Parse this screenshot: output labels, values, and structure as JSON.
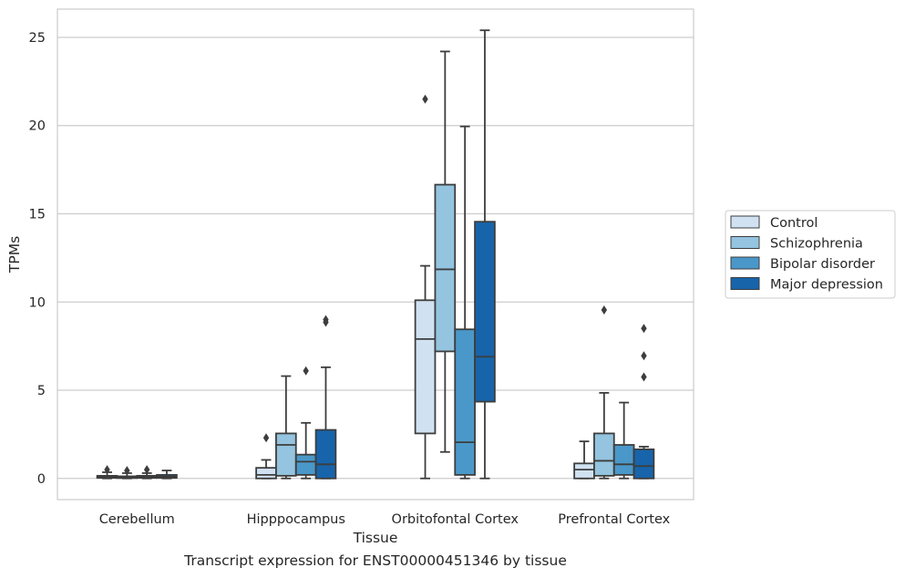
{
  "chart_data": {
    "type": "box",
    "xlabel": "Tissue",
    "ylabel": "TPMs",
    "ylim": [
      -1.2,
      26.6
    ],
    "yticks": [
      0,
      5,
      10,
      15,
      20,
      25
    ],
    "grid": "horizontal",
    "legend_placement": "center-right",
    "categories": [
      "Cerebellum",
      "Hipppocampus",
      "Orbitofontal Cortex",
      "Prefrontal Cortex"
    ],
    "series": [
      {
        "name": "Control",
        "color": "#d0e1f2",
        "boxes": [
          {
            "whisker_low": 0,
            "q1": 0.03,
            "median": 0.08,
            "q3": 0.15,
            "whisker_high": 0.35,
            "outliers": [
              0.5
            ]
          },
          {
            "whisker_low": 0,
            "q1": 0.0,
            "median": 0.2,
            "q3": 0.6,
            "whisker_high": 1.05,
            "outliers": [
              2.3
            ]
          },
          {
            "whisker_low": 0,
            "q1": 2.55,
            "median": 7.9,
            "q3": 10.1,
            "whisker_high": 12.05,
            "outliers": [
              21.5
            ]
          },
          {
            "whisker_low": 0,
            "q1": 0.0,
            "median": 0.5,
            "q3": 0.85,
            "whisker_high": 2.1,
            "outliers": []
          }
        ]
      },
      {
        "name": "Schizophrenia",
        "color": "#94c4df",
        "boxes": [
          {
            "whisker_low": 0,
            "q1": 0.02,
            "median": 0.06,
            "q3": 0.12,
            "whisker_high": 0.3,
            "outliers": [
              0.45
            ]
          },
          {
            "whisker_low": 0,
            "q1": 0.15,
            "median": 1.9,
            "q3": 2.55,
            "whisker_high": 5.8,
            "outliers": []
          },
          {
            "whisker_low": 1.5,
            "q1": 7.2,
            "median": 11.85,
            "q3": 16.65,
            "whisker_high": 24.2,
            "outliers": []
          },
          {
            "whisker_low": 0,
            "q1": 0.15,
            "median": 1.0,
            "q3": 2.55,
            "whisker_high": 4.85,
            "outliers": [
              9.55
            ]
          }
        ]
      },
      {
        "name": "Bipolar disorder",
        "color": "#4a98c9",
        "boxes": [
          {
            "whisker_low": 0,
            "q1": 0.03,
            "median": 0.08,
            "q3": 0.15,
            "whisker_high": 0.3,
            "outliers": [
              0.5
            ]
          },
          {
            "whisker_low": 0,
            "q1": 0.2,
            "median": 0.95,
            "q3": 1.35,
            "whisker_high": 3.15,
            "outliers": [
              6.1
            ]
          },
          {
            "whisker_low": 0,
            "q1": 0.2,
            "median": 2.05,
            "q3": 8.45,
            "whisker_high": 19.95,
            "outliers": []
          },
          {
            "whisker_low": 0,
            "q1": 0.2,
            "median": 0.8,
            "q3": 1.9,
            "whisker_high": 4.3,
            "outliers": []
          }
        ]
      },
      {
        "name": "Major depression",
        "color": "#1764ab",
        "boxes": [
          {
            "whisker_low": 0,
            "q1": 0.03,
            "median": 0.1,
            "q3": 0.2,
            "whisker_high": 0.45,
            "outliers": []
          },
          {
            "whisker_low": 0,
            "q1": 0.0,
            "median": 0.8,
            "q3": 2.75,
            "whisker_high": 6.3,
            "outliers": [
              8.85,
              9.0
            ]
          },
          {
            "whisker_low": 0,
            "q1": 4.35,
            "median": 6.9,
            "q3": 14.55,
            "whisker_high": 25.4,
            "outliers": []
          },
          {
            "whisker_low": 0,
            "q1": 0.0,
            "median": 0.7,
            "q3": 1.65,
            "whisker_high": 1.8,
            "outliers": [
              5.75,
              6.95,
              8.5
            ]
          }
        ]
      }
    ]
  },
  "caption": "Transcript expression for ENST00000451346 by tissue"
}
